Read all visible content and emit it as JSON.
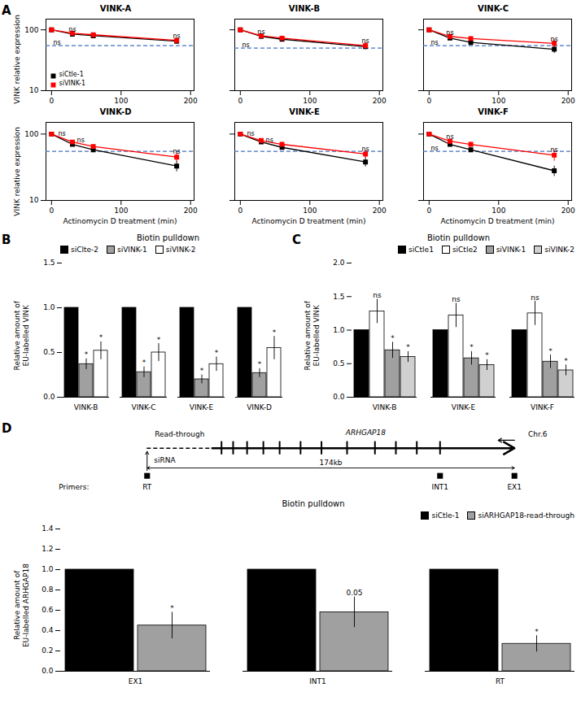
{
  "chart_data": [
    {
      "type": "line",
      "title": "VINK-A",
      "log": "y",
      "xlim": [
        -8,
        205
      ],
      "xticks": [
        0,
        100,
        200
      ],
      "ylim": [
        10,
        150
      ],
      "yticks": [
        10,
        100
      ],
      "ylabel": "VINK relative expression",
      "legend": "lower left",
      "series": [
        {
          "name": "siCtle-1",
          "color": "black",
          "marker": "square",
          "x": [
            0,
            30,
            60,
            180
          ],
          "values": [
            100,
            85,
            80,
            65
          ],
          "errors": [
            3,
            5,
            4,
            5
          ]
        },
        {
          "name": "siVINK-1",
          "color": "red",
          "marker": "square",
          "x": [
            0,
            30,
            60,
            180
          ],
          "values": [
            100,
            88,
            83,
            67
          ],
          "errors": [
            3,
            4,
            5,
            4
          ]
        }
      ],
      "reference_line": {
        "y": 55,
        "color": "#4472C4",
        "line_style": "dashed"
      },
      "annotations": [
        {
          "x": 30,
          "y": 93,
          "text": "ns"
        },
        {
          "x": 180,
          "y": 72,
          "text": "ns"
        },
        {
          "x": 8,
          "y": 57,
          "text": "ns"
        },
        {
          "text": "A"
        }
      ]
    },
    {
      "type": "line",
      "title": "VINK-B",
      "log": "y",
      "xlim": [
        -8,
        205
      ],
      "xticks": [
        0,
        100,
        200
      ],
      "ylim": [
        10,
        150
      ],
      "yticks": [
        10,
        100
      ],
      "tick_labels": "x",
      "legend": false,
      "series": [
        {
          "name": "siCtle-1",
          "color": "black",
          "marker": "square",
          "x": [
            0,
            30,
            60,
            180
          ],
          "values": [
            100,
            78,
            70,
            53
          ],
          "errors": [
            3,
            5,
            4,
            6
          ]
        },
        {
          "name": "siVINK-1",
          "color": "red",
          "marker": "square",
          "x": [
            0,
            30,
            60,
            180
          ],
          "values": [
            100,
            80,
            73,
            55
          ],
          "errors": [
            3,
            4,
            5,
            7
          ]
        }
      ],
      "reference_line": {
        "y": 50,
        "color": "#4472C4",
        "line_style": "dashed"
      },
      "annotations": [
        {
          "x": 30,
          "y": 85,
          "text": "ns"
        },
        {
          "x": 180,
          "y": 60,
          "text": "ns"
        },
        {
          "x": 8,
          "y": 52,
          "text": "ns"
        }
      ]
    },
    {
      "type": "line",
      "title": "VINK-C",
      "log": "y",
      "xlim": [
        -8,
        205
      ],
      "xticks": [
        0,
        100,
        200
      ],
      "ylim": [
        10,
        150
      ],
      "yticks": [
        10,
        100
      ],
      "tick_labels": "x",
      "legend": false,
      "series": [
        {
          "name": "siCtle-1",
          "color": "black",
          "marker": "square",
          "x": [
            0,
            30,
            60,
            180
          ],
          "values": [
            100,
            73,
            62,
            48
          ],
          "errors": [
            3,
            5,
            4,
            7
          ]
        },
        {
          "name": "siVINK-1",
          "color": "red",
          "marker": "square",
          "x": [
            0,
            30,
            60,
            180
          ],
          "values": [
            100,
            78,
            72,
            60
          ],
          "errors": [
            3,
            4,
            5,
            9
          ]
        }
      ],
      "reference_line": {
        "y": 55,
        "color": "#4472C4",
        "line_style": "dashed"
      },
      "annotations": [
        {
          "x": 30,
          "y": 83,
          "text": "ns"
        },
        {
          "x": 180,
          "y": 65,
          "text": "ns"
        },
        {
          "x": 8,
          "y": 57,
          "text": "ns"
        }
      ]
    },
    {
      "type": "line",
      "title": "VINK-D",
      "log": "y",
      "xlim": [
        -8,
        205
      ],
      "xticks": [
        0,
        100,
        200
      ],
      "ylim": [
        10,
        150
      ],
      "yticks": [
        10,
        100
      ],
      "ylabel": "VINK relative expression",
      "xlabel": "Actinomycin D treatment (min)",
      "legend": false,
      "series": [
        {
          "name": "siCtle-1",
          "color": "black",
          "marker": "square",
          "x": [
            0,
            30,
            60,
            180
          ],
          "values": [
            100,
            70,
            58,
            33
          ],
          "errors": [
            3,
            5,
            4,
            6
          ]
        },
        {
          "name": "siVINK-1",
          "color": "red",
          "marker": "square",
          "x": [
            0,
            30,
            60,
            180
          ],
          "values": [
            100,
            76,
            65,
            45
          ],
          "errors": [
            3,
            4,
            5,
            7
          ]
        }
      ],
      "reference_line": {
        "y": 55,
        "color": "#4472C4",
        "line_style": "dashed"
      },
      "annotations": [
        {
          "x": 15,
          "y": 95,
          "text": "ns"
        },
        {
          "x": 42,
          "y": 75,
          "text": "ns"
        },
        {
          "x": 180,
          "y": 50,
          "text": "ns"
        }
      ]
    },
    {
      "type": "line",
      "title": "VINK-E",
      "log": "y",
      "xlim": [
        -8,
        205
      ],
      "xticks": [
        0,
        100,
        200
      ],
      "ylim": [
        10,
        150
      ],
      "yticks": [
        10,
        100
      ],
      "xlabel": "Actinomycin D treatment (min)",
      "tick_labels": "x",
      "legend": false,
      "series": [
        {
          "name": "siCtle-1",
          "color": "black",
          "marker": "square",
          "x": [
            0,
            30,
            60,
            180
          ],
          "values": [
            100,
            76,
            63,
            38
          ],
          "errors": [
            3,
            5,
            4,
            6
          ]
        },
        {
          "name": "siVINK-1",
          "color": "red",
          "marker": "square",
          "x": [
            0,
            30,
            60,
            180
          ],
          "values": [
            100,
            80,
            70,
            50
          ],
          "errors": [
            3,
            4,
            5,
            7
          ]
        }
      ],
      "reference_line": {
        "y": 55,
        "color": "#4472C4",
        "line_style": "dashed"
      },
      "annotations": [
        {
          "x": 15,
          "y": 95,
          "text": "ns"
        },
        {
          "x": 42,
          "y": 76,
          "text": "ns"
        },
        {
          "x": 180,
          "y": 55,
          "text": "ns"
        }
      ]
    },
    {
      "type": "line",
      "title": "VINK-F",
      "log": "y",
      "xlim": [
        -8,
        205
      ],
      "xticks": [
        0,
        100,
        200
      ],
      "ylim": [
        10,
        150
      ],
      "yticks": [
        10,
        100
      ],
      "xlabel": "Actinomycin D treatment (min)",
      "tick_labels": "x",
      "legend": false,
      "series": [
        {
          "name": "siCtle-1",
          "color": "black",
          "marker": "square",
          "x": [
            0,
            30,
            60,
            180
          ],
          "values": [
            100,
            70,
            58,
            28
          ],
          "errors": [
            3,
            5,
            4,
            5
          ]
        },
        {
          "name": "siVINK-1",
          "color": "red",
          "marker": "square",
          "x": [
            0,
            30,
            60,
            180
          ],
          "values": [
            100,
            78,
            70,
            48
          ],
          "errors": [
            3,
            4,
            5,
            9
          ]
        }
      ],
      "reference_line": {
        "y": 55,
        "color": "#4472C4",
        "line_style": "dashed"
      },
      "annotations": [
        {
          "x": 30,
          "y": 83,
          "text": "ns"
        },
        {
          "x": 8,
          "y": 57,
          "text": "ns"
        },
        {
          "x": 180,
          "y": 53,
          "text": "ns"
        }
      ]
    },
    {
      "type": "bar",
      "title": "Biotin pulldown",
      "categories": [
        "VINK-B",
        "VINK-C",
        "VINK-E",
        "VINK-D"
      ],
      "ylabel": "Relative amount of\nEU-labelled VINK",
      "ylim": [
        0,
        1.5
      ],
      "yticks": [
        {
          "value": 0,
          "label": "0.0"
        },
        0.5,
        {
          "value": 1.0,
          "label": "1.0"
        },
        1.5
      ],
      "legend": "upper left",
      "series": [
        {
          "name": "siClte-2",
          "color": "black",
          "values": [
            1.0,
            1.0,
            1.0,
            1.0
          ],
          "errors": [
            0.0,
            0.0,
            0.0,
            0.0
          ]
        },
        {
          "name": "siVINK-1",
          "color": "#A0A0A0",
          "values": [
            0.37,
            0.28,
            0.2,
            0.27
          ],
          "errors": [
            0.06,
            0.06,
            0.05,
            0.05
          ],
          "sig": [
            "*",
            "*",
            "*",
            "*"
          ]
        },
        {
          "name": "siVINK-2",
          "color": "white",
          "values": [
            0.52,
            0.5,
            0.37,
            0.55
          ],
          "errors": [
            0.1,
            0.1,
            0.08,
            0.13
          ],
          "sig": [
            "*",
            "*",
            "*",
            "*"
          ]
        }
      ],
      "annotations": [
        {
          "text": "B"
        }
      ]
    },
    {
      "type": "bar",
      "title": "Biotin pulldown",
      "categories": [
        "VINK-B",
        "VINK-E",
        "VINK-F"
      ],
      "ylabel": "Relative amount of\nEU-labelled VINK",
      "ylim": [
        0,
        2.0
      ],
      "yticks": [
        {
          "value": 0,
          "label": "0.0"
        },
        0.5,
        {
          "value": 1.0,
          "label": "1.0"
        },
        1.5,
        {
          "value": 2.0,
          "label": "2.0"
        }
      ],
      "legend": "upper right",
      "series": [
        {
          "name": "siCtle1",
          "color": "black",
          "values": [
            1.0,
            1.0,
            1.0
          ],
          "errors": [
            0.0,
            0.0,
            0.0
          ]
        },
        {
          "name": "siCtle2",
          "color": "white",
          "values": [
            1.28,
            1.22,
            1.25
          ],
          "errors": [
            0.18,
            0.18,
            0.18
          ],
          "sig": [
            "ns",
            "ns",
            "ns"
          ]
        },
        {
          "name": "siVINK-1",
          "color": "#A0A0A0",
          "values": [
            0.7,
            0.58,
            0.53
          ],
          "errors": [
            0.12,
            0.1,
            0.1
          ],
          "sig": [
            "*",
            "*",
            "*"
          ]
        },
        {
          "name": "siVINK-2",
          "color": "#D0D0D0",
          "values": [
            0.6,
            0.48,
            0.4
          ],
          "errors": [
            0.08,
            0.08,
            0.08
          ],
          "sig": [
            "*",
            "*",
            "*"
          ]
        }
      ],
      "annotations": [
        {
          "text": "C"
        }
      ]
    },
    {
      "type": "diagram",
      "annotations": [
        {
          "text": "Read-through"
        },
        {
          "text": "ARHGAP18"
        },
        {
          "text": "Chr.6"
        },
        {
          "text": "siRNA"
        },
        {
          "text": "174kb"
        },
        {
          "text": "Primers:"
        },
        {
          "text": "RT"
        },
        {
          "text": "INT1"
        },
        {
          "text": "EX1"
        }
      ]
    },
    {
      "type": "bar",
      "title": "Biotin pulldown",
      "categories": [
        "EX1",
        "INT1",
        "RT"
      ],
      "ylabel": "Relative amount of\nEU-labelled ARHGAP18",
      "ylim": [
        0,
        1.4
      ],
      "yticks": [
        {
          "value": 0,
          "label": "0.0"
        },
        0.2,
        0.4,
        0.6,
        0.8,
        {
          "value": 1.0,
          "label": "1.0"
        },
        1.2,
        1.4
      ],
      "legend": "upper right",
      "series": [
        {
          "name": "siCtle-1",
          "color": "black",
          "values": [
            1.0,
            1.0,
            1.0
          ],
          "errors": [
            0.0,
            0.0,
            0.0
          ]
        },
        {
          "name": "siARHGAP18-read-through",
          "color": "#A0A0A0",
          "values": [
            0.45,
            0.58,
            0.27
          ],
          "errors": [
            0.13,
            0.15,
            0.08
          ],
          "sig": [
            "*",
            "0.05",
            "*"
          ]
        }
      ],
      "annotations": [
        {
          "text": "D"
        }
      ]
    }
  ]
}
